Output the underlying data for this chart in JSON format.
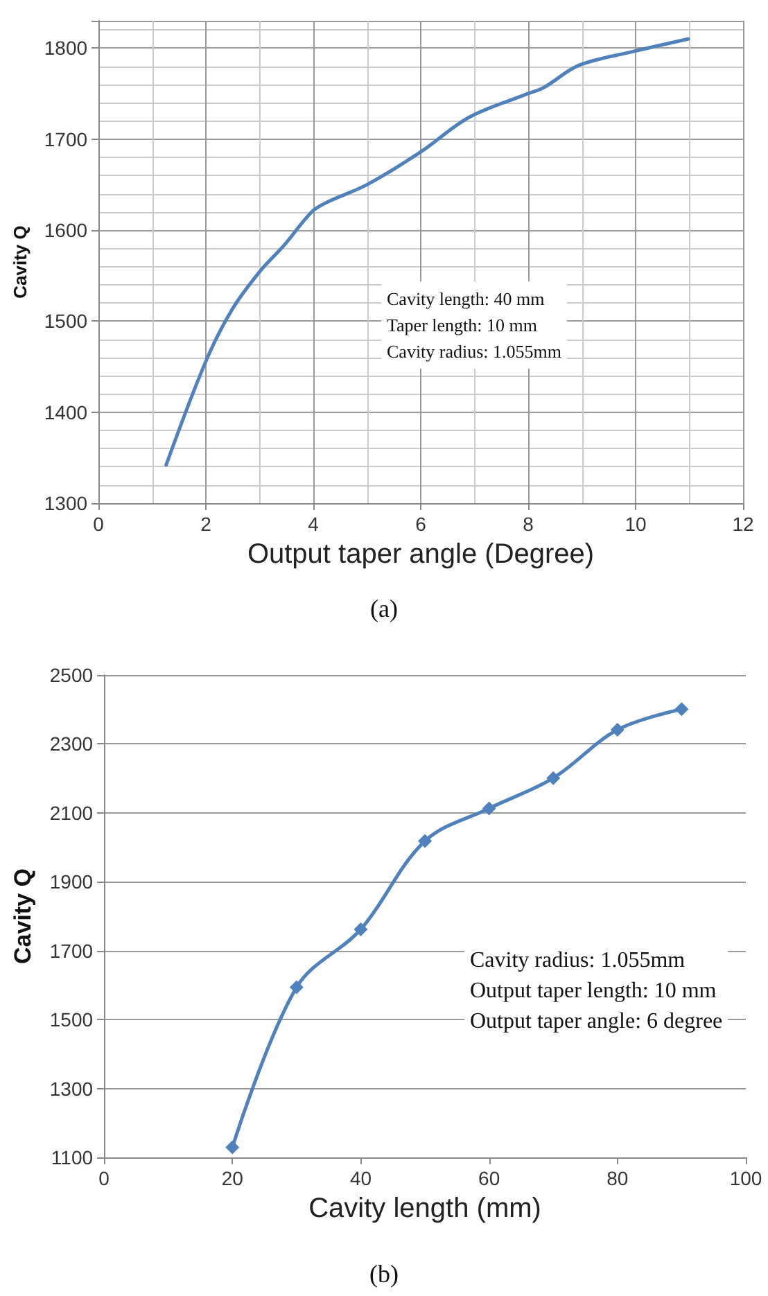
{
  "chart_data": [
    {
      "type": "line",
      "title": "(a)",
      "xlabel": "Output taper angle (Degree)",
      "ylabel": "Cavity Q",
      "annotations": [
        "Cavity length: 40 mm",
        "Taper length: 10 mm",
        "Cavity radius: 1.055mm"
      ],
      "series": [
        {
          "color": "#4f81bd",
          "x": [
            1.26,
            2,
            2.49,
            3.01,
            3.45,
            3.97,
            4.23,
            5,
            6,
            6.9,
            7.95,
            8.3,
            8.94,
            9.94,
            10.98
          ],
          "values": [
            1342,
            1456,
            1513,
            1555,
            1583,
            1620,
            1630,
            1650,
            1686,
            1724,
            1749,
            1757,
            1781,
            1796,
            1810
          ]
        }
      ],
      "xlim": [
        0,
        12
      ],
      "xticks": [
        0,
        2,
        4,
        6,
        8,
        10,
        12
      ],
      "ylim": [
        1300,
        1830
      ],
      "yticks": [
        1300,
        1400,
        1500,
        1600,
        1700,
        1800
      ],
      "grid": true,
      "marker": "none"
    },
    {
      "type": "line",
      "title": "(b)",
      "xlabel": "Cavity length (mm)",
      "ylabel": "Cavity Q",
      "annotations": [
        "Cavity radius: 1.055mm",
        "Output taper length: 10 mm",
        "Output taper angle: 6 degree"
      ],
      "series": [
        {
          "color": "#4f81bd",
          "x": [
            20,
            30,
            40,
            50,
            60,
            70,
            80,
            90
          ],
          "values": [
            1129,
            1594,
            1762,
            2018,
            2113,
            2201,
            2341,
            2401
          ]
        }
      ],
      "xlim": [
        0,
        100
      ],
      "xticks": [
        0,
        20,
        40,
        60,
        80,
        100
      ],
      "ylim": [
        1100,
        2500
      ],
      "yticks": [
        1100,
        1300,
        1500,
        1700,
        1900,
        2100,
        2300,
        2500
      ],
      "grid": "y",
      "marker": "diamond"
    }
  ]
}
